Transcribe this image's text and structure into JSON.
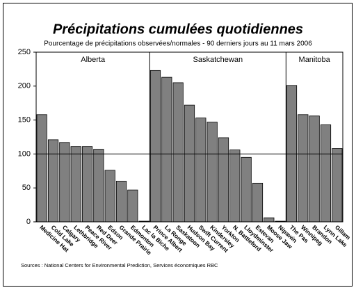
{
  "chart_data": {
    "type": "bar",
    "title": "Précipitations cumulées quotidiennes",
    "subtitle": "Pourcentage de précipitations observées/normales - 90 derniers jours au 11 mars 2006",
    "source": "Sources : National Centers for Environmental Prediction, Services économiques RBC",
    "categories": [
      "Medicine Hat",
      "Cold Lake",
      "Calgary",
      "Lethbridge",
      "Peace River",
      "Red Deer",
      "Edson",
      "Grande Prairie",
      "Edmonton",
      "Lac la Biche",
      "Prince Albert",
      "La Ronge",
      "Saskatoon",
      "Hudson Bay",
      "Swift Current",
      "Kindersley",
      "Yorkton",
      "N. Battleford",
      "Lloydminster",
      "Estevan",
      "Moose Jaw",
      "Nipawin",
      "The Pas",
      "Winnipeg",
      "Brandon",
      "Lynn Lake",
      "Gillam"
    ],
    "values": [
      158,
      121,
      117,
      111,
      111,
      107,
      76,
      60,
      47,
      1,
      223,
      213,
      205,
      172,
      153,
      147,
      124,
      106,
      95,
      57,
      6,
      1,
      201,
      158,
      156,
      143,
      108
    ],
    "groups": [
      {
        "label": "Alberta",
        "count": 10
      },
      {
        "label": "Saskatchewan",
        "count": 12
      },
      {
        "label": "Manitoba",
        "count": 5
      }
    ],
    "reference_line": 100,
    "color": "#808080",
    "ylim": [
      0,
      250
    ],
    "yticks": [
      0,
      50,
      100,
      150,
      200,
      250
    ]
  }
}
